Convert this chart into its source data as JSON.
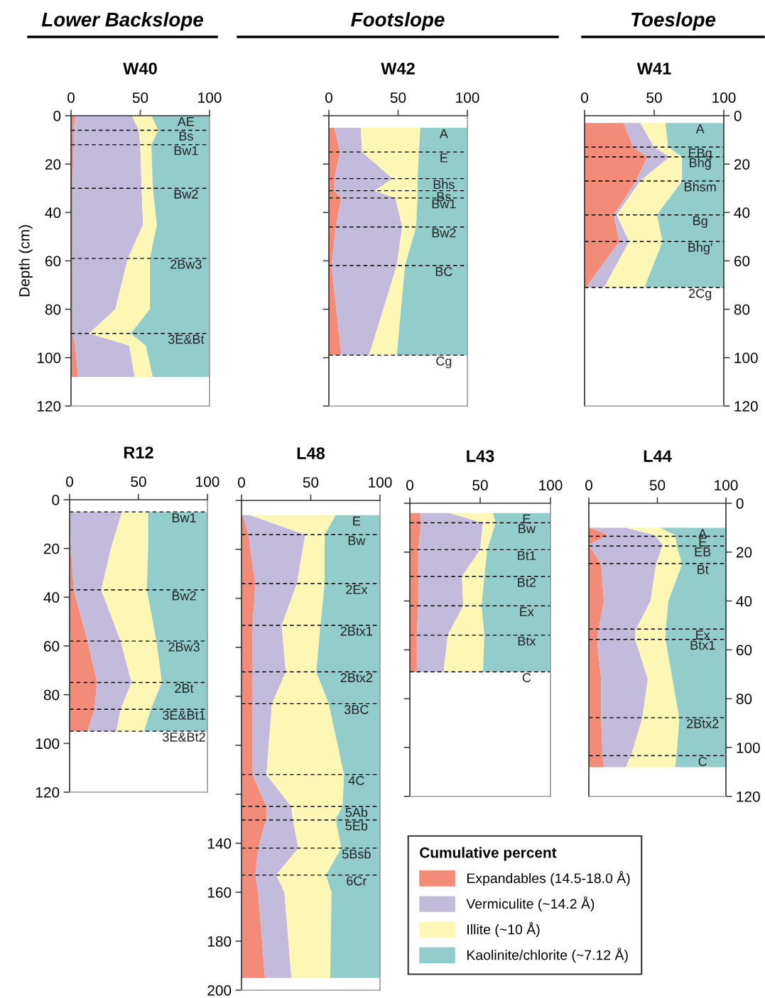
{
  "chart_data": [
    {
      "type": "area",
      "orientation": "horizontal",
      "stacked": true,
      "title": "W40",
      "subtitle": "Lower Backslope",
      "ylabel": "Depth (cm)",
      "annotations": [
        "AE"
      ],
      "x": [
        0,
        6,
        12,
        30,
        45,
        59,
        80,
        90,
        95,
        108
      ],
      "xlim": [
        0,
        100
      ],
      "xticks": [
        0,
        50,
        100
      ],
      "ylim": [
        120,
        0
      ],
      "yticks": [
        0,
        20,
        40,
        60,
        80,
        100,
        120
      ],
      "ref_lines": [
        {
          "axis": "y",
          "value": 6,
          "label": "Bs"
        },
        {
          "axis": "y",
          "value": 12,
          "label": "Bw1"
        },
        {
          "axis": "y",
          "value": 30,
          "label": "Bw2"
        },
        {
          "axis": "y",
          "value": 59,
          "label": "2Bw3"
        },
        {
          "axis": "y",
          "value": 90,
          "label": "3E&Bt"
        }
      ],
      "series": [
        {
          "color": "#f28b78",
          "values": [
            3,
            2,
            2,
            1,
            1,
            1,
            1,
            1,
            3,
            5
          ]
        },
        {
          "color": "#c3bbdc",
          "values": [
            41,
            47,
            48,
            50,
            51,
            40,
            31,
            12,
            39,
            41
          ]
        },
        {
          "color": "#fdf7b5",
          "values": [
            14,
            14,
            8,
            8,
            10,
            16,
            25,
            30,
            12,
            13
          ]
        },
        {
          "color": "#92cdcb",
          "values": [
            42,
            37,
            42,
            41,
            38,
            43,
            43,
            57,
            46,
            41
          ]
        }
      ]
    },
    {
      "type": "area",
      "orientation": "horizontal",
      "stacked": true,
      "title": "W42",
      "subtitle": "Footslope",
      "tick_labels": "x",
      "annotations": [
        "A"
      ],
      "x": [
        5,
        15,
        26,
        31,
        34,
        46,
        62,
        99
      ],
      "xlim": [
        0,
        100
      ],
      "xticks": [
        0,
        50,
        100
      ],
      "ylim": [
        120,
        0
      ],
      "yticks": [
        0,
        20,
        40,
        60,
        80,
        100,
        120
      ],
      "ref_lines": [
        {
          "axis": "y",
          "value": 15,
          "label": "E"
        },
        {
          "axis": "y",
          "value": 26,
          "label": "Bhs"
        },
        {
          "axis": "y",
          "value": 31,
          "label": "Bs"
        },
        {
          "axis": "y",
          "value": 34,
          "label": "Bw1"
        },
        {
          "axis": "y",
          "value": 46,
          "label": "Bw2"
        },
        {
          "axis": "y",
          "value": 62,
          "label": "BC"
        },
        {
          "axis": "y",
          "value": 99,
          "label": "Cg"
        }
      ],
      "series": [
        {
          "color": "#f28b78",
          "values": [
            4,
            8,
            4,
            4,
            9,
            5,
            2,
            9
          ]
        },
        {
          "color": "#c3bbdc",
          "values": [
            19,
            16,
            42,
            29,
            39,
            48,
            47,
            20
          ]
        },
        {
          "color": "#fdf7b5",
          "values": [
            43,
            41,
            18,
            31,
            16,
            10,
            6,
            20
          ]
        },
        {
          "color": "#92cdcb",
          "values": [
            34,
            35,
            36,
            36,
            36,
            37,
            45,
            51
          ]
        }
      ]
    },
    {
      "type": "area",
      "orientation": "horizontal",
      "stacked": true,
      "title": "W41",
      "subtitle": "Toeslope",
      "annotations": [
        "A"
      ],
      "x": [
        3,
        13,
        17,
        27,
        41,
        52,
        71
      ],
      "xlim": [
        0,
        100
      ],
      "xticks": [
        0,
        50,
        100
      ],
      "ylim": [
        120,
        0
      ],
      "yticks": [
        0,
        20,
        40,
        60,
        80,
        100,
        120
      ],
      "ref_lines": [
        {
          "axis": "y",
          "value": 13,
          "label": "EBg"
        },
        {
          "axis": "y",
          "value": 17,
          "label": "Bhg"
        },
        {
          "axis": "y",
          "value": 27,
          "label": "Bhsm"
        },
        {
          "axis": "y",
          "value": 41,
          "label": "Bg"
        },
        {
          "axis": "y",
          "value": 52,
          "label": "Bhg′"
        },
        {
          "axis": "y",
          "value": 71,
          "label": "2Cg"
        }
      ],
      "series": [
        {
          "color": "#f28b78",
          "values": [
            28,
            35,
            45,
            37,
            21,
            25,
            1
          ]
        },
        {
          "color": "#c3bbdc",
          "values": [
            12,
            15,
            16,
            3,
            2,
            7,
            13
          ]
        },
        {
          "color": "#fdf7b5",
          "values": [
            18,
            10,
            9,
            30,
            29,
            24,
            29
          ]
        },
        {
          "color": "#92cdcb",
          "values": [
            42,
            40,
            30,
            30,
            48,
            44,
            57
          ]
        }
      ]
    },
    {
      "type": "area",
      "orientation": "horizontal",
      "stacked": true,
      "title": "R12",
      "x": [
        5,
        20,
        37,
        58,
        75,
        86,
        95
      ],
      "xlim": [
        0,
        100
      ],
      "xticks": [
        0,
        50,
        100
      ],
      "ylim": [
        120,
        0
      ],
      "yticks": [
        0,
        20,
        40,
        60,
        80,
        100,
        120
      ],
      "ref_lines": [
        {
          "axis": "y",
          "value": 5,
          "label": "Bw1"
        },
        {
          "axis": "y",
          "value": 37,
          "label": "Bw2"
        },
        {
          "axis": "y",
          "value": 58,
          "label": "2Bw3"
        },
        {
          "axis": "y",
          "value": 75,
          "label": "2Bt"
        },
        {
          "axis": "y",
          "value": 86,
          "label": "3E&Bt1"
        },
        {
          "axis": "y",
          "value": 95,
          "label": "3E&Bt2"
        }
      ],
      "series": [
        {
          "color": "#f28b78",
          "values": [
            0,
            1,
            3,
            13,
            20,
            18,
            13
          ]
        },
        {
          "color": "#c3bbdc",
          "values": [
            38,
            29,
            20,
            24,
            25,
            19,
            21
          ]
        },
        {
          "color": "#fdf7b5",
          "values": [
            19,
            27,
            33,
            26,
            22,
            22,
            20
          ]
        },
        {
          "color": "#92cdcb",
          "values": [
            43,
            43,
            44,
            37,
            33,
            41,
            46
          ]
        }
      ]
    },
    {
      "type": "area",
      "orientation": "horizontal",
      "stacked": true,
      "title": "L48",
      "annotations": [
        "E"
      ],
      "x": [
        6,
        14,
        34,
        51,
        70,
        83,
        112,
        125,
        130,
        142,
        153,
        160,
        195
      ],
      "xlim": [
        0,
        100
      ],
      "xticks": [
        0,
        50,
        100
      ],
      "ylim": [
        200,
        0
      ],
      "yticks": [
        {
          "value": 0,
          "label": null
        },
        {
          "value": 20,
          "label": null
        },
        {
          "value": 40,
          "label": null
        },
        {
          "value": 60,
          "label": null
        },
        {
          "value": 80,
          "label": null
        },
        {
          "value": 100,
          "label": null
        },
        {
          "value": 120,
          "label": null
        },
        140,
        160,
        180,
        200
      ],
      "ref_lines": [
        {
          "axis": "y",
          "value": 14,
          "label": "Bw"
        },
        {
          "axis": "y",
          "value": 34,
          "label": "2Ex"
        },
        {
          "axis": "y",
          "value": 51,
          "label": "2Btx1"
        },
        {
          "axis": "y",
          "value": 70,
          "label": "2Btx2"
        },
        {
          "axis": "y",
          "value": 83,
          "label": "3BC"
        },
        {
          "axis": "y",
          "value": 112,
          "label": "4C"
        },
        {
          "axis": "y",
          "value": 125,
          "label": "5Ab"
        },
        {
          "axis": "y",
          "value": 130.5,
          "label": "5Eb"
        },
        {
          "axis": "y",
          "value": 142,
          "label": "5Bsb"
        },
        {
          "axis": "y",
          "value": 153,
          "label": "6Cr"
        }
      ],
      "series": [
        {
          "color": "#f28b78",
          "values": [
            1,
            5,
            10,
            8,
            8,
            8,
            8,
            18,
            18,
            12,
            10,
            12,
            17
          ]
        },
        {
          "color": "#c3bbdc",
          "values": [
            5,
            41,
            30,
            21,
            24,
            14,
            10,
            18,
            19,
            29,
            15,
            19,
            19
          ]
        },
        {
          "color": "#fdf7b5",
          "values": [
            62,
            14,
            20,
            28,
            22,
            41,
            56,
            37,
            31,
            31,
            36,
            34,
            28
          ]
        },
        {
          "color": "#92cdcb",
          "values": [
            32,
            40,
            40,
            43,
            46,
            37,
            26,
            27,
            32,
            28,
            39,
            35,
            36
          ]
        }
      ]
    },
    {
      "type": "area",
      "orientation": "horizontal",
      "stacked": true,
      "title": "L43",
      "tick_labels": "x",
      "legend": "bottom right",
      "legend_title": "Cumulative percent",
      "annotations": [
        "E"
      ],
      "x": [
        4,
        8,
        19,
        30,
        42,
        54,
        69
      ],
      "xlim": [
        0,
        100
      ],
      "xticks": [
        0,
        50,
        100
      ],
      "ylim": [
        120,
        0
      ],
      "yticks": [
        0,
        20,
        40,
        60,
        80,
        100,
        120
      ],
      "ref_lines": [
        {
          "axis": "y",
          "value": 8,
          "label": "Bw"
        },
        {
          "axis": "y",
          "value": 19,
          "label": "Bt1"
        },
        {
          "axis": "y",
          "value": 30,
          "label": "Bt2"
        },
        {
          "axis": "y",
          "value": 42,
          "label": "Ex"
        },
        {
          "axis": "y",
          "value": 54,
          "label": "Btx"
        },
        {
          "axis": "y",
          "value": 69,
          "label": "C"
        }
      ],
      "series": [
        {
          "name": "Expandables (14.5-18.0 Å)",
          "color": "#f28b78",
          "values": [
            7,
            8,
            6,
            6,
            6,
            5,
            5
          ]
        },
        {
          "name": "Vermiculite (~14.2 Å)",
          "color": "#c3bbdc",
          "values": [
            21,
            44,
            44,
            31,
            32,
            22,
            19
          ]
        },
        {
          "name": "Illite (~10 Å)",
          "color": "#fdf7b5",
          "values": [
            31,
            9,
            5,
            16,
            13,
            26,
            28
          ]
        },
        {
          "name": "Kaolinite/chlorite (~7.12 Å)",
          "color": "#92cdcb",
          "values": [
            41,
            39,
            45,
            47,
            49,
            47,
            48
          ]
        }
      ]
    },
    {
      "type": "area",
      "orientation": "horizontal",
      "stacked": true,
      "title": "L44",
      "annotations": [
        "A"
      ],
      "x": [
        10,
        13,
        17,
        25,
        40,
        52,
        56,
        72,
        88,
        103,
        108
      ],
      "xlim": [
        0,
        100
      ],
      "xticks": [
        0,
        50,
        100
      ],
      "ylim": [
        120,
        0
      ],
      "yticks": [
        0,
        20,
        40,
        60,
        80,
        100,
        120
      ],
      "ref_lines": [
        {
          "axis": "y",
          "value": 13.5,
          "label": "E"
        },
        {
          "axis": "y",
          "value": 17.5,
          "label": "EB"
        },
        {
          "axis": "y",
          "value": 24.7,
          "label": "Bt"
        },
        {
          "axis": "y",
          "value": 51.5,
          "label": "Ex"
        },
        {
          "axis": "y",
          "value": 55.7,
          "label": "Btx1"
        },
        {
          "axis": "y",
          "value": 87.8,
          "label": "2Btx2"
        },
        {
          "axis": "y",
          "value": 103.3,
          "label": "C"
        }
      ],
      "series": [
        {
          "color": "#f28b78",
          "values": [
            1,
            14,
            0,
            9,
            11,
            7,
            6,
            9,
            9,
            10,
            11
          ]
        },
        {
          "color": "#c3bbdc",
          "values": [
            26,
            34,
            54,
            40,
            34,
            27,
            28,
            34,
            30,
            21,
            16
          ]
        },
        {
          "color": "#fdf7b5",
          "values": [
            25,
            15,
            10,
            19,
            13,
            22,
            22,
            18,
            27,
            33,
            36
          ]
        },
        {
          "color": "#92cdcb",
          "values": [
            48,
            37,
            36,
            32,
            42,
            44,
            44,
            39,
            34,
            36,
            37
          ]
        }
      ]
    }
  ]
}
